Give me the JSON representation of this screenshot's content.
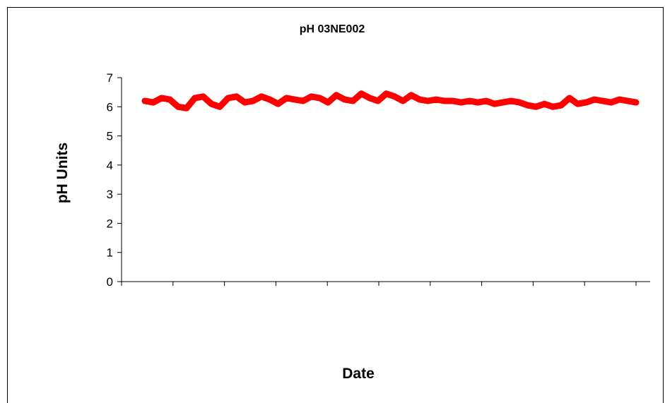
{
  "chart_data": {
    "type": "line",
    "title": "pH 03NE002",
    "xlabel": "Date",
    "ylabel": "pH Units",
    "ylim": [
      0,
      7
    ],
    "yticks": [
      "0",
      "1",
      "2",
      "3",
      "4",
      "5",
      "6",
      "7"
    ],
    "grid": false,
    "legend": "none",
    "series": [
      {
        "color": "#ff0000",
        "values": [
          6.2,
          6.15,
          6.3,
          6.25,
          6.0,
          5.95,
          6.3,
          6.35,
          6.1,
          6.0,
          6.3,
          6.35,
          6.15,
          6.2,
          6.35,
          6.25,
          6.1,
          6.3,
          6.25,
          6.2,
          6.35,
          6.3,
          6.15,
          6.4,
          6.25,
          6.2,
          6.45,
          6.3,
          6.2,
          6.45,
          6.35,
          6.2,
          6.4,
          6.25,
          6.2,
          6.25,
          6.2,
          6.2,
          6.15,
          6.2,
          6.15,
          6.2,
          6.1,
          6.15,
          6.2,
          6.15,
          6.05,
          6.0,
          6.1,
          6.0,
          6.05,
          6.3,
          6.1,
          6.15,
          6.25,
          6.2,
          6.15,
          6.25,
          6.2,
          6.15
        ]
      }
    ]
  }
}
